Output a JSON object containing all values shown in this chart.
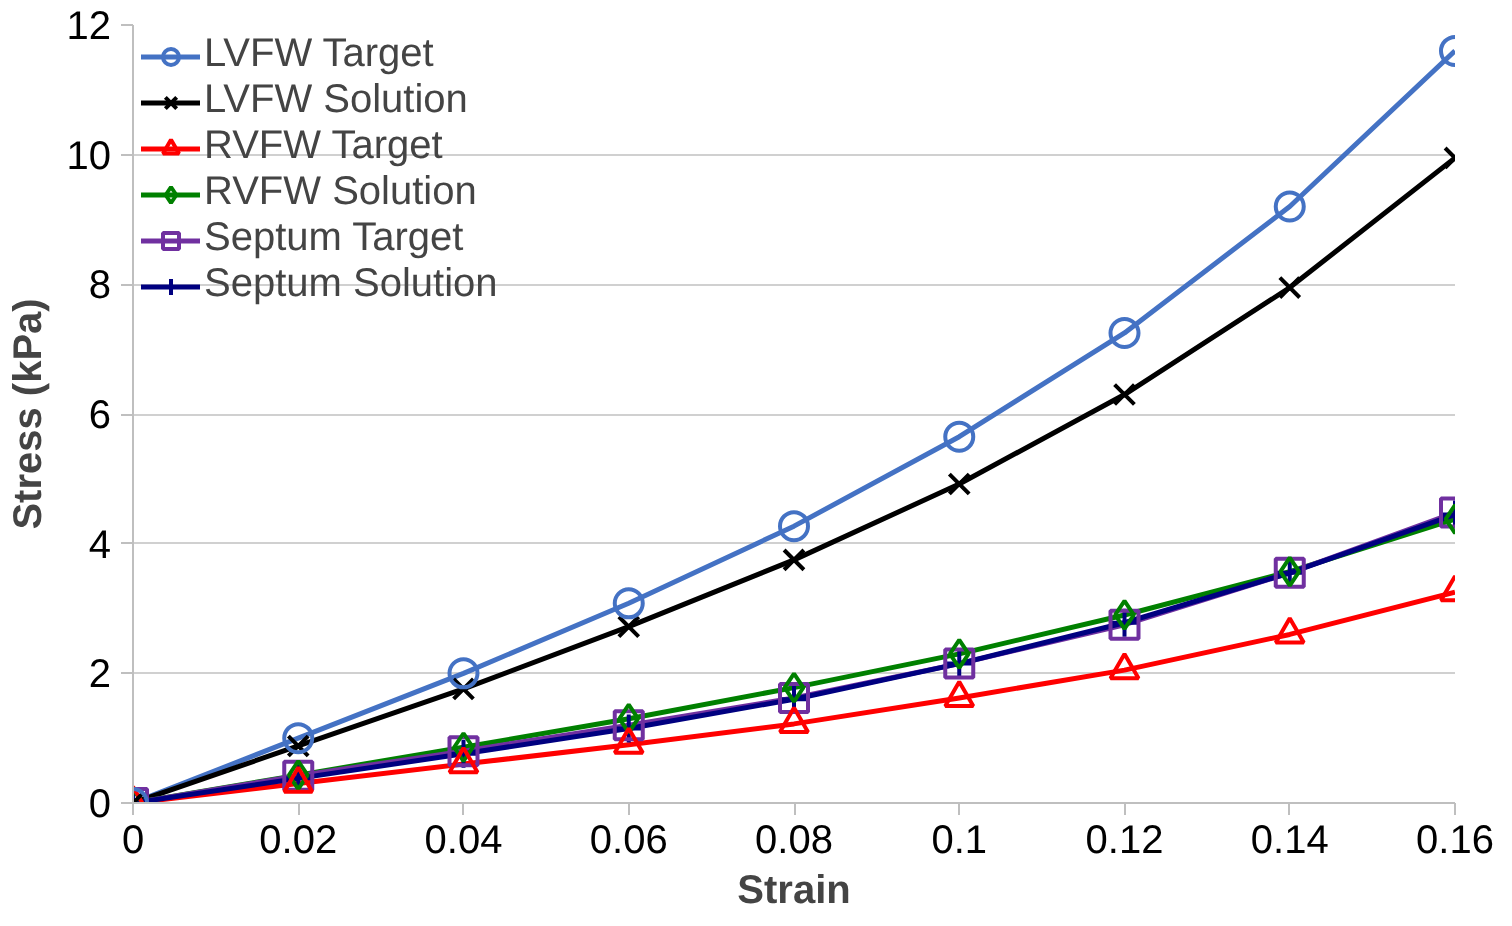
{
  "chart_data": {
    "type": "line",
    "xlabel": "Strain",
    "ylabel": "Stress (kPa)",
    "x": [
      0,
      0.02,
      0.04,
      0.06,
      0.08,
      0.1,
      0.12,
      0.14,
      0.16
    ],
    "xlim": [
      0,
      0.16
    ],
    "xticks": [
      0,
      0.02,
      0.04,
      0.06,
      0.08,
      0.1,
      0.12,
      0.14,
      0.16
    ],
    "ylim": [
      0,
      12
    ],
    "yticks": [
      0,
      2,
      4,
      6,
      8,
      10,
      12
    ],
    "grid": "y",
    "legend": "top left",
    "series": [
      {
        "name": "LVFW Target",
        "color": "#4472c4",
        "marker": "circle",
        "values": [
          0,
          1.0,
          2.0,
          3.08,
          4.27,
          5.65,
          7.25,
          9.2,
          11.6
        ]
      },
      {
        "name": "LVFW Solution",
        "color": "#000000",
        "marker": "x",
        "values": [
          0,
          0.88,
          1.76,
          2.72,
          3.75,
          4.92,
          6.3,
          7.95,
          9.95
        ]
      },
      {
        "name": "RVFW Target",
        "color": "#ff0000",
        "marker": "triangle",
        "values": [
          0,
          0.3,
          0.6,
          0.9,
          1.22,
          1.62,
          2.05,
          2.6,
          3.25
        ]
      },
      {
        "name": "RVFW Solution",
        "color": "#008000",
        "marker": "diamond",
        "values": [
          0,
          0.43,
          0.86,
          1.3,
          1.78,
          2.3,
          2.9,
          3.57,
          4.38
        ]
      },
      {
        "name": "Septum Target",
        "color": "#7030a0",
        "marker": "square",
        "values": [
          0,
          0.42,
          0.8,
          1.2,
          1.62,
          2.15,
          2.75,
          3.55,
          4.48
        ]
      },
      {
        "name": "Septum Solution",
        "color": "#000080",
        "marker": "cross",
        "values": [
          0,
          0.38,
          0.76,
          1.15,
          1.6,
          2.15,
          2.78,
          3.55,
          4.45
        ]
      }
    ]
  }
}
